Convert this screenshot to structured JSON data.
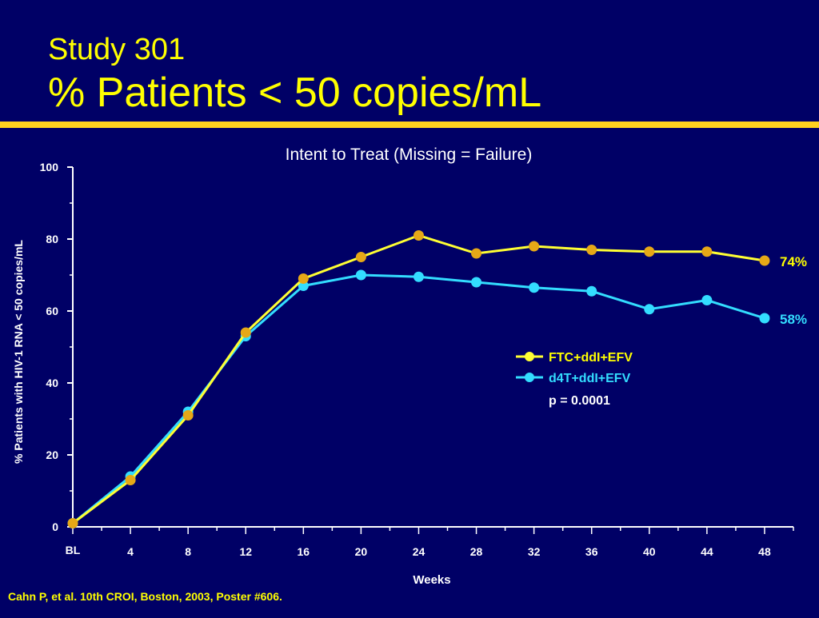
{
  "slide": {
    "title_line1": "Study 301",
    "title_line2": "% Patients < 50 copies/mL",
    "citation": "Cahn P, et al. 10th CROI, Boston, 2003, Poster #606.",
    "colors": {
      "background": "#000066",
      "title": "#ffff00",
      "rule": "#ffd21f"
    }
  },
  "chart_data": {
    "type": "line",
    "title": "Intent to Treat (Missing = Failure)",
    "xlabel": "Weeks",
    "ylabel": "% Patients with HIV-1 RNA < 50 copies/mL",
    "x": [
      0,
      4,
      8,
      12,
      16,
      20,
      24,
      28,
      32,
      36,
      40,
      44,
      48
    ],
    "x_tick_labels": [
      "BL",
      "4",
      "8",
      "12",
      "16",
      "20",
      "24",
      "28",
      "32",
      "36",
      "40",
      "44",
      "48"
    ],
    "y_ticks": [
      0,
      20,
      40,
      60,
      80,
      100
    ],
    "xlim": [
      0,
      50
    ],
    "ylim": [
      0,
      100
    ],
    "grid": false,
    "legend_position": "right-middle",
    "series": [
      {
        "name": "FTC+ddI+EFV",
        "values": [
          1,
          13,
          31,
          54,
          69,
          75,
          81,
          76,
          78,
          77,
          76.5,
          76.5,
          74
        ],
        "line_color": "#ffff33",
        "marker_color": "#e6a817",
        "label_color": "#ffff00",
        "end_label": "74%"
      },
      {
        "name": "d4T+ddI+EFV",
        "values": [
          1,
          14,
          32,
          53,
          67,
          70,
          69.5,
          68,
          66.5,
          65.5,
          60.5,
          63,
          58
        ],
        "line_color": "#33ddff",
        "marker_color": "#33ddff",
        "label_color": "#33ddff",
        "end_label": "58%"
      }
    ],
    "annotation": "p = 0.0001",
    "axis_color": "#ffffff",
    "text_color": "#ffffff"
  }
}
